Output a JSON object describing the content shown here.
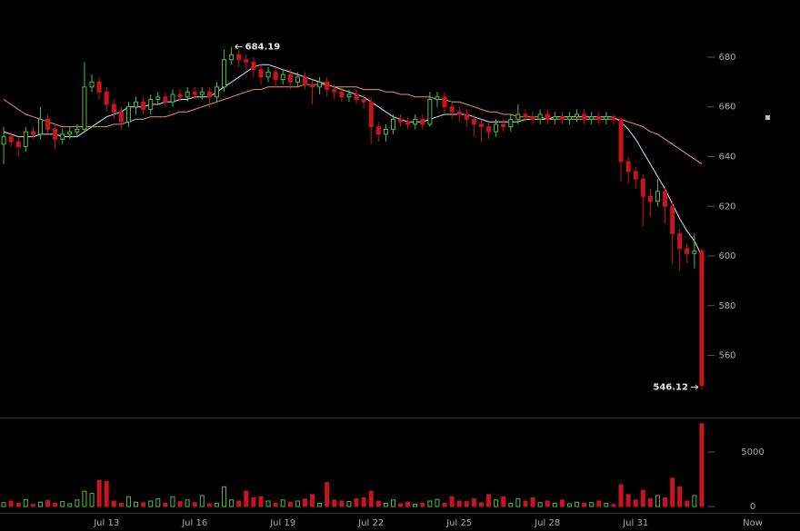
{
  "chart_data": {
    "type": "candlestick",
    "categories": [
      null,
      null,
      null,
      null,
      null,
      null,
      null,
      null,
      null,
      null,
      null,
      null,
      null,
      null,
      "Jul 13",
      null,
      null,
      null,
      null,
      null,
      null,
      null,
      null,
      null,
      null,
      null,
      "Jul 16",
      null,
      null,
      null,
      null,
      null,
      null,
      null,
      null,
      null,
      null,
      null,
      "Jul 19",
      null,
      null,
      null,
      null,
      null,
      null,
      null,
      null,
      null,
      null,
      null,
      "Jul 22",
      null,
      null,
      null,
      null,
      null,
      null,
      null,
      null,
      null,
      null,
      null,
      "Jul 25",
      null,
      null,
      null,
      null,
      null,
      null,
      null,
      null,
      null,
      null,
      null,
      "Jul 28",
      null,
      null,
      null,
      null,
      null,
      null,
      null,
      null,
      null,
      null,
      null,
      "Jul 31",
      null,
      null,
      null,
      null,
      null,
      null,
      null,
      null,
      null
    ],
    "now_label": "Now",
    "open": [
      645,
      648,
      646,
      644,
      650,
      649,
      655,
      651,
      647,
      649,
      650,
      651,
      668,
      670,
      666,
      661,
      658,
      654,
      660,
      662,
      659,
      663,
      664,
      662,
      665,
      664,
      666,
      665,
      666,
      664,
      668,
      679,
      681,
      679,
      678,
      675,
      672,
      674,
      671,
      673,
      670,
      672,
      669,
      668,
      670,
      667,
      666,
      664,
      665,
      663,
      662,
      652,
      649,
      651,
      655,
      654,
      653,
      655,
      653,
      663,
      664,
      660,
      658,
      657,
      655,
      653,
      652,
      650,
      653,
      652,
      655,
      657,
      656,
      655,
      657,
      655,
      656,
      655,
      656,
      657,
      655,
      656,
      655,
      656,
      655,
      638,
      634,
      631,
      624,
      622,
      626,
      620,
      609,
      603,
      601,
      602
    ],
    "high": [
      652,
      650,
      648,
      652,
      652,
      660,
      657,
      653,
      651,
      652,
      653,
      678,
      673,
      672,
      668,
      663,
      660,
      662,
      664,
      664,
      665,
      666,
      666,
      667,
      667,
      668,
      668,
      668,
      668,
      670,
      683,
      684.19,
      683,
      681,
      680,
      677,
      676,
      676,
      675,
      675,
      674,
      674,
      671,
      672,
      672,
      669,
      668,
      667,
      667,
      665,
      664,
      654,
      653,
      657,
      657,
      656,
      657,
      657,
      666,
      666,
      666,
      662,
      660,
      659,
      657,
      655,
      654,
      655,
      655,
      657,
      661,
      659,
      658,
      659,
      659,
      658,
      658,
      658,
      659,
      659,
      658,
      658,
      658,
      657,
      656,
      640,
      636,
      633,
      627,
      631,
      628,
      622,
      611,
      605,
      609,
      603
    ],
    "low": [
      637,
      644,
      640,
      642,
      647,
      647,
      649,
      643,
      645,
      647,
      648,
      650,
      666,
      663,
      658,
      655,
      651,
      652,
      657,
      657,
      657,
      661,
      660,
      660,
      662,
      662,
      663,
      663,
      660,
      662,
      666,
      677,
      676,
      675,
      672,
      669,
      670,
      668,
      669,
      667,
      668,
      667,
      661,
      665,
      664,
      663,
      662,
      662,
      661,
      659,
      645,
      646,
      646,
      649,
      652,
      651,
      651,
      651,
      652,
      660,
      657,
      655,
      654,
      652,
      648,
      646,
      647,
      648,
      650,
      650,
      653,
      654,
      653,
      653,
      653,
      653,
      653,
      653,
      654,
      653,
      653,
      653,
      653,
      653,
      630,
      629,
      627,
      612,
      616,
      620,
      613,
      597,
      594,
      597,
      595,
      546.12
    ],
    "close": [
      648,
      646,
      644,
      650,
      649,
      655,
      651,
      647,
      649,
      650,
      651,
      668,
      670,
      666,
      661,
      658,
      654,
      660,
      662,
      659,
      663,
      664,
      662,
      665,
      664,
      666,
      665,
      666,
      664,
      668,
      679,
      681,
      679,
      678,
      675,
      672,
      674,
      671,
      673,
      670,
      672,
      669,
      668,
      670,
      667,
      666,
      664,
      665,
      663,
      662,
      652,
      649,
      651,
      655,
      654,
      653,
      655,
      653,
      663,
      664,
      660,
      658,
      657,
      655,
      653,
      652,
      650,
      653,
      652,
      655,
      657,
      656,
      655,
      657,
      655,
      656,
      655,
      656,
      657,
      655,
      656,
      655,
      656,
      655,
      638,
      634,
      631,
      624,
      622,
      626,
      620,
      609,
      603,
      601,
      602,
      548
    ],
    "up_color": "#55b94a",
    "down_color": "#c8141c",
    "ylim": [
      535,
      703
    ],
    "yticks": [
      560,
      580,
      600,
      620,
      640,
      660,
      680
    ],
    "ma_lines": [
      {
        "color": "#d6e6f0",
        "values": [
          650,
          649,
          648,
          648,
          648,
          649,
          649,
          649,
          648,
          648,
          648,
          650,
          652,
          654,
          656,
          657,
          658,
          660,
          660,
          660,
          661,
          661,
          662,
          662,
          663,
          663,
          664,
          664,
          664,
          666,
          668,
          670,
          672,
          674,
          676,
          677,
          677,
          676,
          675,
          674,
          673,
          672,
          671,
          670,
          669,
          668,
          667,
          666,
          665,
          664,
          662,
          660,
          658,
          656,
          655,
          654,
          654,
          654,
          655,
          656,
          657,
          657,
          657,
          657,
          656,
          655,
          654,
          654,
          654,
          654,
          654,
          655,
          655,
          655,
          655,
          656,
          656,
          656,
          656,
          656,
          656,
          656,
          656,
          656,
          654,
          651,
          647,
          642,
          637,
          632,
          627,
          621,
          615,
          610,
          606,
          600
        ]
      },
      {
        "color": "#e49a55",
        "values": [
          663,
          661,
          659,
          657,
          656,
          655,
          654,
          653,
          652,
          652,
          652,
          652,
          652,
          652,
          652,
          653,
          653,
          654,
          655,
          655,
          656,
          656,
          656,
          657,
          658,
          658,
          659,
          660,
          661,
          662,
          663,
          664,
          665,
          666,
          667,
          667,
          668,
          668,
          668,
          668,
          668,
          669,
          669,
          669,
          669,
          668,
          668,
          668,
          668,
          667,
          667,
          667,
          666,
          666,
          665,
          665,
          664,
          664,
          664,
          663,
          663,
          662,
          662,
          661,
          660,
          659,
          658,
          658,
          657,
          657,
          656,
          656,
          656,
          656,
          655,
          655,
          655,
          655,
          655,
          655,
          655,
          655,
          655,
          655,
          655,
          654,
          653,
          652,
          650,
          649,
          647,
          645,
          643,
          641,
          639,
          637
        ]
      }
    ],
    "volume": {
      "values": [
        350,
        500,
        300,
        650,
        200,
        400,
        550,
        300,
        450,
        250,
        600,
        1400,
        1200,
        2400,
        2300,
        500,
        300,
        900,
        400,
        350,
        500,
        700,
        300,
        900,
        450,
        600,
        350,
        1000,
        250,
        300,
        1800,
        600,
        500,
        1400,
        800,
        900,
        500,
        300,
        600,
        400,
        500,
        700,
        1100,
        300,
        2200,
        600,
        500,
        450,
        700,
        800,
        1400,
        500,
        300,
        600,
        250,
        400,
        200,
        300,
        500,
        650,
        300,
        900,
        500,
        450,
        700,
        350,
        1100,
        600,
        900,
        300,
        700,
        500,
        800,
        350,
        500,
        300,
        600,
        250,
        400,
        300,
        350,
        500,
        300,
        200,
        2000,
        1100,
        600,
        1500,
        700,
        1000,
        800,
        2600,
        1800,
        500,
        1000,
        7600
      ],
      "ylim": [
        -583,
        8167
      ],
      "yticks": [
        0,
        5000
      ]
    }
  }
}
